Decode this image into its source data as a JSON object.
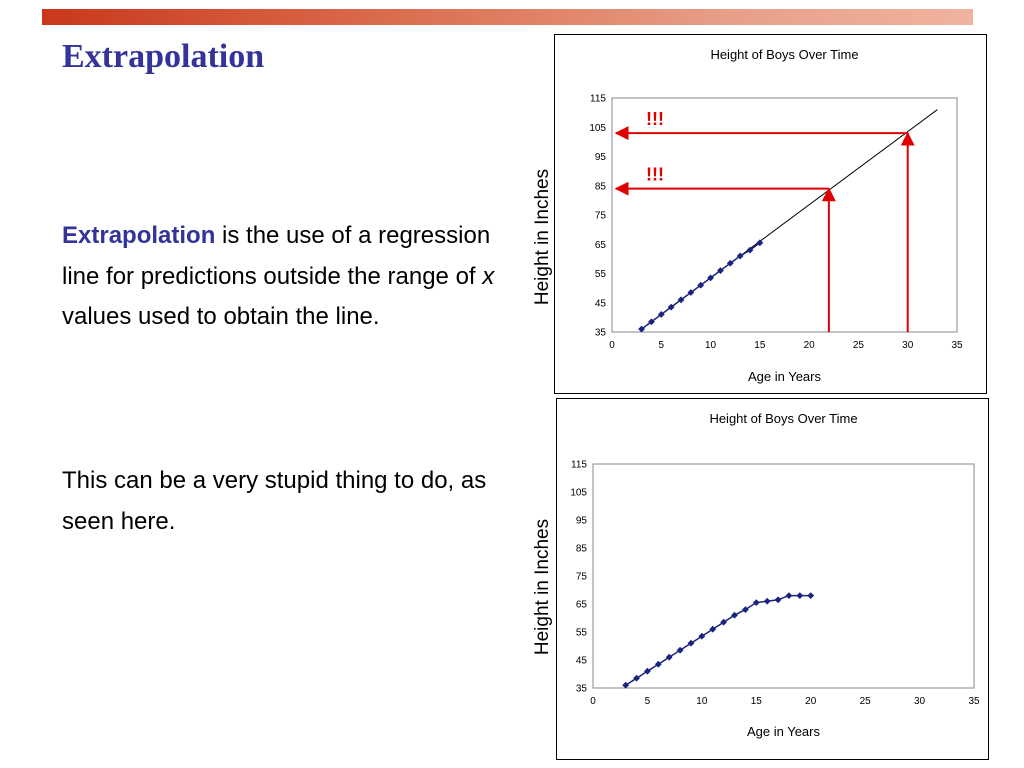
{
  "slide": {
    "title": "Extrapolation",
    "paragraph1": {
      "keyword": "Extrapolation",
      "text_a": " is the use of a regression line for predictions outside the range of ",
      "x_var": "x",
      "text_b": " values used to obtain the line."
    },
    "paragraph2": "This can be a very stupid thing to do, as seen here.",
    "accent_color": "#333399",
    "bar_color": "#c9381c"
  },
  "chart_data": [
    {
      "type": "line",
      "title": "Height of Boys Over Time",
      "xlabel": "Age in Years",
      "ylabel": "Height in Inches",
      "xlim": [
        0,
        35
      ],
      "ylim": [
        35,
        115
      ],
      "xticks": [
        0,
        5,
        10,
        15,
        20,
        25,
        30,
        35
      ],
      "yticks": [
        35,
        45,
        55,
        65,
        75,
        85,
        95,
        105,
        115
      ],
      "series": [
        {
          "marker": "diamond",
          "color": "#1a237e",
          "x": [
            3,
            4,
            5,
            6,
            7,
            8,
            9,
            10,
            11,
            12,
            13,
            14,
            15
          ],
          "y": [
            36,
            38.5,
            41,
            43.5,
            46,
            48.5,
            51,
            53.5,
            56,
            58.5,
            61,
            63,
            65.5
          ]
        }
      ],
      "trendline": {
        "x": [
          3,
          33
        ],
        "y": [
          36,
          111
        ],
        "color": "#000000"
      },
      "annotations": [
        {
          "label": "!!!",
          "x": 22,
          "y": 84,
          "color": "#e00000"
        },
        {
          "label": "!!!",
          "x": 30,
          "y": 103,
          "color": "#e00000"
        }
      ]
    },
    {
      "type": "line",
      "title": "Height of Boys Over Time",
      "xlabel": "Age in Years",
      "ylabel": "Height in Inches",
      "xlim": [
        0,
        35
      ],
      "ylim": [
        35,
        115
      ],
      "xticks": [
        0,
        5,
        10,
        15,
        20,
        25,
        30,
        35
      ],
      "yticks": [
        35,
        45,
        55,
        65,
        75,
        85,
        95,
        105,
        115
      ],
      "series": [
        {
          "marker": "diamond",
          "color": "#1a237e",
          "x": [
            3,
            4,
            5,
            6,
            7,
            8,
            9,
            10,
            11,
            12,
            13,
            14,
            15,
            16,
            17,
            18,
            19,
            20
          ],
          "y": [
            36,
            38.5,
            41,
            43.5,
            46,
            48.5,
            51,
            53.5,
            56,
            58.5,
            61,
            63,
            65.5,
            66,
            66.5,
            68,
            68,
            68
          ]
        }
      ]
    }
  ]
}
